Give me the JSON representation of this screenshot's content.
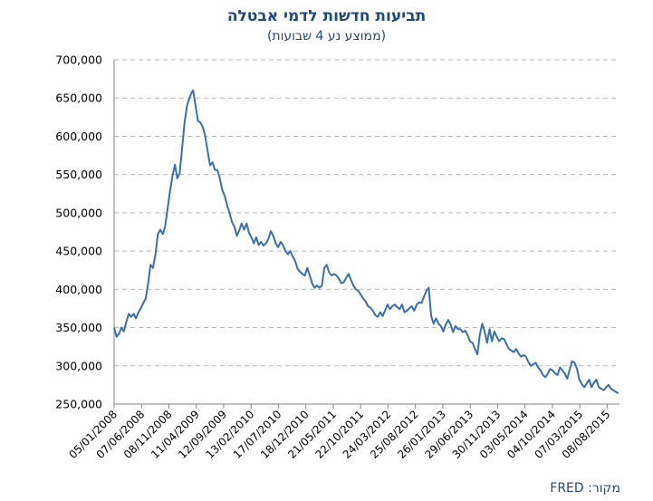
{
  "chart_data": {
    "type": "line",
    "title": "תביעות חדשות לדמי אבטלה",
    "subtitle": "(ממוצע נע 4 שבועות)",
    "source": "מקור: FRED",
    "xlabel": "",
    "ylabel": "",
    "ylim": [
      250000,
      700000
    ],
    "xlim": [
      "2008-01-05",
      "2015-12-26"
    ],
    "grid": true,
    "line_color": "#3a6fb0",
    "y_ticks": [
      "250,000",
      "300,000",
      "350,000",
      "400,000",
      "450,000",
      "500,000",
      "550,000",
      "600,000",
      "650,000",
      "700,000"
    ],
    "x_ticks": [
      "05/01/2008",
      "07/06/2008",
      "08/11/2008",
      "11/04/2009",
      "12/09/2009",
      "13/02/2010",
      "17/07/2010",
      "18/12/2010",
      "21/05/2011",
      "22/10/2011",
      "24/03/2012",
      "25/08/2012",
      "26/01/2013",
      "29/06/2013",
      "30/11/2013",
      "03/05/2014",
      "04/10/2014",
      "07/03/2015",
      "08/08/2015"
    ],
    "series": [
      {
        "values": [
          [
            "2008-01-05",
            350000
          ],
          [
            "2008-01-19",
            338000
          ],
          [
            "2008-02-02",
            342000
          ],
          [
            "2008-02-16",
            350000
          ],
          [
            "2008-03-01",
            345000
          ],
          [
            "2008-03-15",
            357000
          ],
          [
            "2008-03-29",
            368000
          ],
          [
            "2008-04-12",
            364000
          ],
          [
            "2008-04-26",
            368000
          ],
          [
            "2008-05-10",
            362000
          ],
          [
            "2008-05-24",
            370000
          ],
          [
            "2008-06-07",
            375000
          ],
          [
            "2008-06-21",
            382000
          ],
          [
            "2008-07-05",
            388000
          ],
          [
            "2008-07-19",
            408000
          ],
          [
            "2008-08-02",
            432000
          ],
          [
            "2008-08-16",
            428000
          ],
          [
            "2008-08-30",
            445000
          ],
          [
            "2008-09-13",
            472000
          ],
          [
            "2008-09-27",
            478000
          ],
          [
            "2008-10-11",
            472000
          ],
          [
            "2008-10-25",
            482000
          ],
          [
            "2008-11-08",
            505000
          ],
          [
            "2008-11-22",
            528000
          ],
          [
            "2008-12-06",
            548000
          ],
          [
            "2008-12-20",
            563000
          ],
          [
            "2009-01-03",
            545000
          ],
          [
            "2009-01-17",
            552000
          ],
          [
            "2009-01-31",
            585000
          ],
          [
            "2009-02-14",
            618000
          ],
          [
            "2009-02-28",
            640000
          ],
          [
            "2009-03-14",
            650000
          ],
          [
            "2009-03-28",
            658000
          ],
          [
            "2009-04-04",
            660000
          ],
          [
            "2009-04-18",
            640000
          ],
          [
            "2009-05-02",
            620000
          ],
          [
            "2009-05-16",
            618000
          ],
          [
            "2009-05-30",
            612000
          ],
          [
            "2009-06-13",
            600000
          ],
          [
            "2009-06-27",
            580000
          ],
          [
            "2009-07-11",
            562000
          ],
          [
            "2009-07-25",
            566000
          ],
          [
            "2009-08-08",
            556000
          ],
          [
            "2009-08-22",
            556000
          ],
          [
            "2009-09-05",
            545000
          ],
          [
            "2009-09-19",
            530000
          ],
          [
            "2009-10-03",
            522000
          ],
          [
            "2009-10-17",
            510000
          ],
          [
            "2009-10-31",
            500000
          ],
          [
            "2009-11-14",
            488000
          ],
          [
            "2009-11-28",
            482000
          ],
          [
            "2009-12-12",
            470000
          ],
          [
            "2009-12-26",
            477000
          ],
          [
            "2010-01-09",
            486000
          ],
          [
            "2010-01-23",
            478000
          ],
          [
            "2010-02-06",
            486000
          ],
          [
            "2010-02-20",
            474000
          ],
          [
            "2010-03-06",
            468000
          ],
          [
            "2010-03-20",
            460000
          ],
          [
            "2010-04-03",
            468000
          ],
          [
            "2010-04-17",
            458000
          ],
          [
            "2010-05-01",
            462000
          ],
          [
            "2010-05-15",
            457000
          ],
          [
            "2010-05-29",
            460000
          ],
          [
            "2010-06-12",
            466000
          ],
          [
            "2010-06-26",
            476000
          ],
          [
            "2010-07-10",
            470000
          ],
          [
            "2010-07-24",
            460000
          ],
          [
            "2010-08-07",
            455000
          ],
          [
            "2010-08-21",
            462000
          ],
          [
            "2010-09-04",
            458000
          ],
          [
            "2010-09-18",
            450000
          ],
          [
            "2010-10-02",
            446000
          ],
          [
            "2010-10-16",
            450000
          ],
          [
            "2010-10-30",
            443000
          ],
          [
            "2010-11-13",
            437000
          ],
          [
            "2010-11-27",
            427000
          ],
          [
            "2010-12-11",
            423000
          ],
          [
            "2010-12-25",
            420000
          ],
          [
            "2011-01-08",
            418000
          ],
          [
            "2011-01-22",
            428000
          ],
          [
            "2011-02-05",
            418000
          ],
          [
            "2011-02-19",
            408000
          ],
          [
            "2011-03-05",
            402000
          ],
          [
            "2011-03-19",
            405000
          ],
          [
            "2011-04-02",
            402000
          ],
          [
            "2011-04-16",
            405000
          ],
          [
            "2011-04-30",
            428000
          ],
          [
            "2011-05-14",
            432000
          ],
          [
            "2011-05-28",
            422000
          ],
          [
            "2011-06-11",
            418000
          ],
          [
            "2011-06-25",
            420000
          ],
          [
            "2011-07-09",
            418000
          ],
          [
            "2011-07-23",
            414000
          ],
          [
            "2011-08-06",
            408000
          ],
          [
            "2011-08-20",
            409000
          ],
          [
            "2011-09-03",
            415000
          ],
          [
            "2011-09-17",
            420000
          ],
          [
            "2011-10-01",
            412000
          ],
          [
            "2011-10-15",
            405000
          ],
          [
            "2011-10-29",
            400000
          ],
          [
            "2011-11-12",
            398000
          ],
          [
            "2011-11-26",
            393000
          ],
          [
            "2011-12-10",
            388000
          ],
          [
            "2011-12-24",
            384000
          ],
          [
            "2012-01-07",
            378000
          ],
          [
            "2012-01-21",
            376000
          ],
          [
            "2012-02-04",
            372000
          ],
          [
            "2012-02-18",
            366000
          ],
          [
            "2012-03-03",
            364000
          ],
          [
            "2012-03-17",
            370000
          ],
          [
            "2012-03-31",
            365000
          ],
          [
            "2012-04-14",
            372000
          ],
          [
            "2012-04-28",
            380000
          ],
          [
            "2012-05-12",
            374000
          ],
          [
            "2012-05-26",
            378000
          ],
          [
            "2012-06-09",
            380000
          ],
          [
            "2012-06-23",
            377000
          ],
          [
            "2012-07-07",
            374000
          ],
          [
            "2012-07-21",
            380000
          ],
          [
            "2012-08-04",
            370000
          ],
          [
            "2012-08-18",
            372000
          ],
          [
            "2012-09-01",
            375000
          ],
          [
            "2012-09-15",
            378000
          ],
          [
            "2012-09-29",
            372000
          ],
          [
            "2012-10-13",
            380000
          ],
          [
            "2012-10-27",
            383000
          ],
          [
            "2012-11-10",
            382000
          ],
          [
            "2012-11-24",
            390000
          ],
          [
            "2012-12-08",
            398000
          ],
          [
            "2012-12-22",
            402000
          ],
          [
            "2013-01-05",
            365000
          ],
          [
            "2013-01-19",
            355000
          ],
          [
            "2013-02-02",
            362000
          ],
          [
            "2013-02-16",
            355000
          ],
          [
            "2013-03-02",
            352000
          ],
          [
            "2013-03-16",
            345000
          ],
          [
            "2013-03-30",
            354000
          ],
          [
            "2013-04-13",
            360000
          ],
          [
            "2013-04-27",
            354000
          ],
          [
            "2013-05-11",
            344000
          ],
          [
            "2013-05-25",
            352000
          ],
          [
            "2013-06-08",
            348000
          ],
          [
            "2013-06-22",
            348000
          ],
          [
            "2013-07-06",
            344000
          ],
          [
            "2013-07-20",
            346000
          ],
          [
            "2013-08-03",
            340000
          ],
          [
            "2013-08-17",
            332000
          ],
          [
            "2013-08-31",
            330000
          ],
          [
            "2013-09-14",
            322000
          ],
          [
            "2013-09-28",
            315000
          ],
          [
            "2013-10-12",
            340000
          ],
          [
            "2013-10-26",
            355000
          ],
          [
            "2013-11-09",
            345000
          ],
          [
            "2013-11-23",
            330000
          ],
          [
            "2013-12-07",
            348000
          ],
          [
            "2013-12-21",
            332000
          ],
          [
            "2014-01-04",
            345000
          ],
          [
            "2014-01-18",
            338000
          ],
          [
            "2014-02-01",
            332000
          ],
          [
            "2014-02-15",
            336000
          ],
          [
            "2014-03-01",
            335000
          ],
          [
            "2014-03-15",
            328000
          ],
          [
            "2014-03-29",
            322000
          ],
          [
            "2014-04-12",
            320000
          ],
          [
            "2014-04-26",
            318000
          ],
          [
            "2014-05-10",
            322000
          ],
          [
            "2014-05-24",
            316000
          ],
          [
            "2014-06-07",
            312000
          ],
          [
            "2014-06-21",
            314000
          ],
          [
            "2014-07-05",
            312000
          ],
          [
            "2014-07-19",
            305000
          ],
          [
            "2014-08-02",
            300000
          ],
          [
            "2014-08-16",
            302000
          ],
          [
            "2014-08-30",
            304000
          ],
          [
            "2014-09-13",
            298000
          ],
          [
            "2014-09-27",
            294000
          ],
          [
            "2014-10-11",
            288000
          ],
          [
            "2014-10-25",
            285000
          ],
          [
            "2014-11-08",
            290000
          ],
          [
            "2014-11-22",
            296000
          ],
          [
            "2014-12-06",
            294000
          ],
          [
            "2014-12-20",
            290000
          ],
          [
            "2015-01-03",
            288000
          ],
          [
            "2015-01-17",
            298000
          ],
          [
            "2015-01-31",
            294000
          ],
          [
            "2015-02-14",
            290000
          ],
          [
            "2015-02-28",
            283000
          ],
          [
            "2015-03-14",
            295000
          ],
          [
            "2015-03-28",
            306000
          ],
          [
            "2015-04-11",
            304000
          ],
          [
            "2015-04-25",
            296000
          ],
          [
            "2015-05-09",
            282000
          ],
          [
            "2015-05-23",
            276000
          ],
          [
            "2015-06-06",
            272000
          ],
          [
            "2015-06-20",
            277000
          ],
          [
            "2015-07-04",
            282000
          ],
          [
            "2015-07-18",
            272000
          ],
          [
            "2015-08-01",
            278000
          ],
          [
            "2015-08-15",
            282000
          ],
          [
            "2015-08-29",
            272000
          ],
          [
            "2015-09-12",
            270000
          ],
          [
            "2015-09-26",
            268000
          ],
          [
            "2015-10-10",
            272000
          ],
          [
            "2015-10-24",
            275000
          ],
          [
            "2015-11-07",
            270000
          ],
          [
            "2015-11-21",
            268000
          ],
          [
            "2015-12-05",
            266000
          ],
          [
            "2015-12-19",
            264000
          ]
        ]
      }
    ]
  }
}
